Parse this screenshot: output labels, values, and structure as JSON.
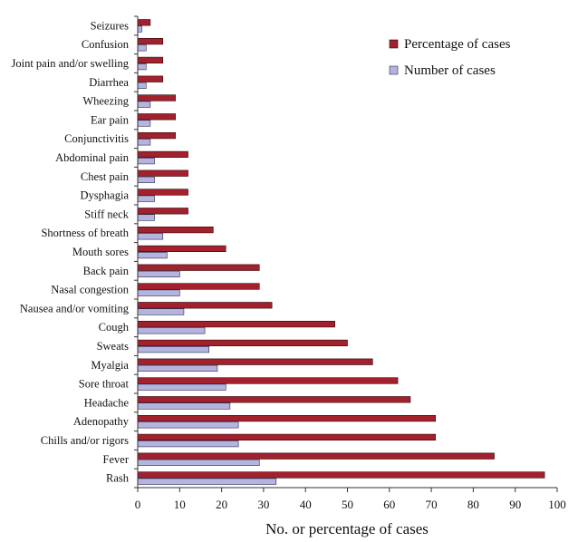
{
  "chart_data": {
    "type": "bar",
    "orientation": "horizontal",
    "xlabel": "No. or percentage of cases",
    "xlim": [
      0,
      100
    ],
    "xticks": [
      0,
      10,
      20,
      30,
      40,
      50,
      60,
      70,
      80,
      90,
      100
    ],
    "legend_position": "top-right",
    "categories": [
      "Seizures",
      "Confusion",
      "Joint pain and/or swelling",
      "Diarrhea",
      "Wheezing",
      "Ear pain",
      "Conjunctivitis",
      "Abdominal pain",
      "Chest pain",
      "Dysphagia",
      "Stiff neck",
      "Shortness of breath",
      "Mouth sores",
      "Back pain",
      "Nasal congestion",
      "Nausea and/or vomiting",
      "Cough",
      "Sweats",
      "Myalgia",
      "Sore throat",
      "Headache",
      "Adenopathy",
      "Chills and/or rigors",
      "Fever",
      "Rash"
    ],
    "series": [
      {
        "name": "Percentage of cases",
        "color": "#a3202c",
        "values": [
          3,
          6,
          6,
          6,
          9,
          9,
          9,
          12,
          12,
          12,
          12,
          18,
          21,
          29,
          29,
          32,
          47,
          50,
          56,
          62,
          65,
          71,
          71,
          85,
          97
        ]
      },
      {
        "name": "Number of cases",
        "color": "#b4b4de",
        "values": [
          1,
          2,
          2,
          2,
          3,
          3,
          3,
          4,
          4,
          4,
          4,
          6,
          7,
          10,
          10,
          11,
          16,
          17,
          19,
          21,
          22,
          24,
          24,
          29,
          33
        ]
      }
    ]
  }
}
